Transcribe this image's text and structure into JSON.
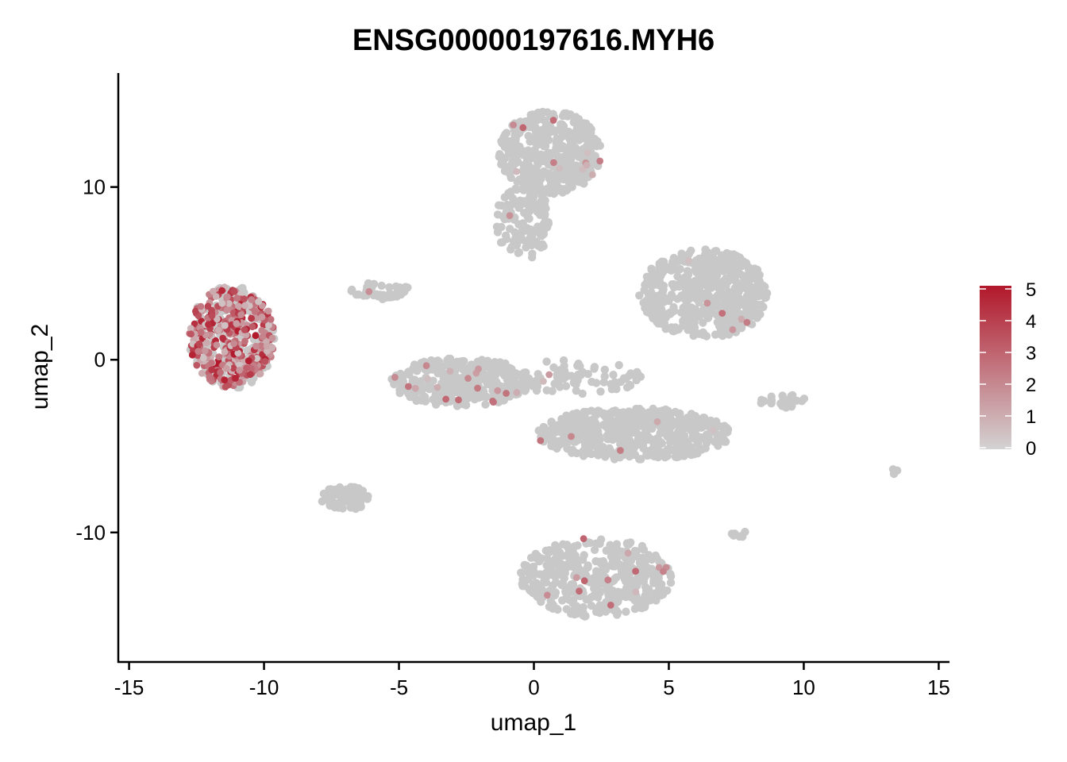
{
  "chart_data": {
    "type": "scatter",
    "title": "ENSG00000197616.MYH6",
    "xlabel": "umap_1",
    "ylabel": "umap_2",
    "xlim": [
      -15.4,
      15.4
    ],
    "ylim": [
      -17.5,
      16.6
    ],
    "x_ticks": [
      -15,
      -10,
      -5,
      0,
      5,
      10,
      15
    ],
    "x_tick_labels": [
      "-15",
      "-10",
      "-5",
      "0",
      "5",
      "10",
      "15"
    ],
    "y_ticks": [
      -10,
      0,
      10
    ],
    "y_tick_labels": [
      "-10",
      "0",
      "10"
    ],
    "grid": false,
    "legend": {
      "type": "colorbar",
      "placement": "right",
      "min": 0,
      "max": 5,
      "tick_labels": [
        "0",
        "1",
        "2",
        "3",
        "4",
        "5"
      ],
      "low_color": "#d3d3d3",
      "high_color": "#b2182b"
    },
    "point_color_zero": "#c8c8c8",
    "clusters": [
      {
        "cx": -11.2,
        "cy": 1.3,
        "rx": 1.6,
        "ry": 3.0,
        "n": 520,
        "expr_frac": 0.7,
        "expr_max": 5
      },
      {
        "cx": 0.6,
        "cy": 12.0,
        "rx": 1.9,
        "ry": 2.4,
        "n": 420,
        "expr_frac": 0.02,
        "expr_max": 3
      },
      {
        "cx": -0.4,
        "cy": 8.0,
        "rx": 1.0,
        "ry": 2.2,
        "n": 120,
        "expr_frac": 0.03,
        "expr_max": 3
      },
      {
        "cx": 6.3,
        "cy": 3.8,
        "rx": 2.4,
        "ry": 2.6,
        "n": 500,
        "expr_frac": 0.02,
        "expr_max": 3
      },
      {
        "cx": -2.7,
        "cy": -1.3,
        "rx": 2.6,
        "ry": 1.4,
        "n": 340,
        "expr_frac": 0.03,
        "expr_max": 3
      },
      {
        "cx": 3.7,
        "cy": -4.3,
        "rx": 3.6,
        "ry": 1.5,
        "n": 560,
        "expr_frac": 0.02,
        "expr_max": 3
      },
      {
        "cx": 2.3,
        "cy": -12.6,
        "rx": 2.8,
        "ry": 2.3,
        "n": 420,
        "expr_frac": 0.03,
        "expr_max": 3
      },
      {
        "cx": -7.0,
        "cy": -8.0,
        "rx": 0.9,
        "ry": 0.7,
        "n": 70,
        "expr_frac": 0.0,
        "expr_max": 1
      },
      {
        "cx": -5.7,
        "cy": 4.0,
        "rx": 1.1,
        "ry": 0.5,
        "n": 40,
        "expr_frac": 0.05,
        "expr_max": 2
      },
      {
        "cx": 1.5,
        "cy": -1.0,
        "rx": 2.5,
        "ry": 1.0,
        "n": 80,
        "expr_frac": 0.05,
        "expr_max": 2
      },
      {
        "cx": 9.2,
        "cy": -2.4,
        "rx": 0.9,
        "ry": 0.4,
        "n": 25,
        "expr_frac": 0.0,
        "expr_max": 1
      },
      {
        "cx": 7.6,
        "cy": -10.1,
        "rx": 0.3,
        "ry": 0.2,
        "n": 8,
        "expr_frac": 0.0,
        "expr_max": 1
      },
      {
        "cx": 13.3,
        "cy": -6.5,
        "rx": 0.2,
        "ry": 0.2,
        "n": 5,
        "expr_frac": 0.0,
        "expr_max": 1
      }
    ]
  }
}
